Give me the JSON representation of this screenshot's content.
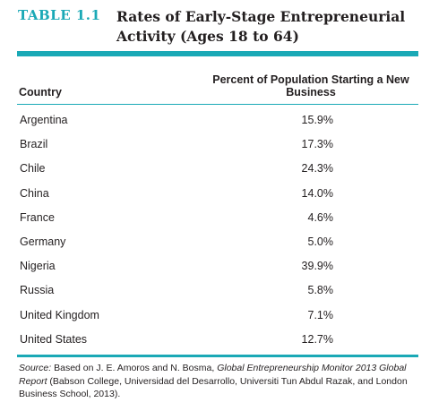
{
  "title": {
    "label": "TABLE 1.1",
    "text": "Rates of Early-Stage Entrepreneurial Activity (Ages 18 to 64)"
  },
  "table": {
    "columns": {
      "country": "Country",
      "percent": "Percent of Population Starting a New Business"
    },
    "rows": [
      {
        "country": "Argentina",
        "value": "15.9%"
      },
      {
        "country": "Brazil",
        "value": "17.3%"
      },
      {
        "country": "Chile",
        "value": "24.3%"
      },
      {
        "country": "China",
        "value": "14.0%"
      },
      {
        "country": "France",
        "value": "4.6%"
      },
      {
        "country": "Germany",
        "value": "5.0%"
      },
      {
        "country": "Nigeria",
        "value": "39.9%"
      },
      {
        "country": "Russia",
        "value": "5.8%"
      },
      {
        "country": "United Kingdom",
        "value": "7.1%"
      },
      {
        "country": "United States",
        "value": "12.7%"
      }
    ]
  },
  "source": {
    "lead": "Source:",
    "part1": " Based on J. E. Amoros and N. Bosma, ",
    "italic": "Global Entrepreneurship Monitor 2013 Global Report",
    "part2": " (Babson College, Universidad del Desarrollo, Universiti Tun Abdul Razak, and London Business School, 2013)."
  },
  "colors": {
    "accent": "#1aa9b6",
    "text": "#231f20"
  }
}
